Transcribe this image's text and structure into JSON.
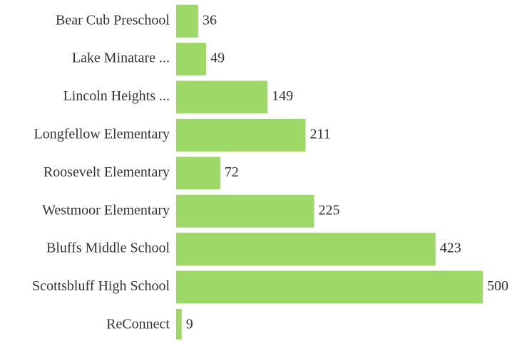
{
  "chart_data": {
    "type": "bar",
    "orientation": "horizontal",
    "categories": [
      "Bear Cub Preschool",
      "Lake Minatare ...",
      "Lincoln Heights ...",
      "Longfellow Elementary",
      "Roosevelt Elementary",
      "Westmoor Elementary",
      "Bluffs Middle School",
      "Scottsbluff High School",
      "ReConnect"
    ],
    "values": [
      36,
      49,
      149,
      211,
      72,
      225,
      423,
      500,
      9
    ],
    "color": "#9ed867"
  }
}
